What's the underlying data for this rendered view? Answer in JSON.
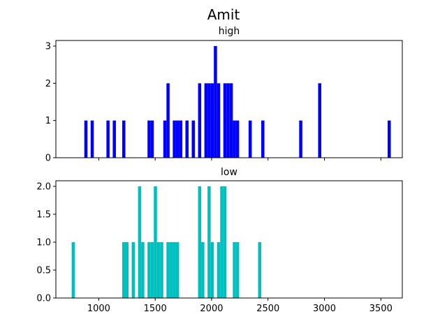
{
  "chart_data": [
    {
      "type": "bar",
      "title": "Amit",
      "subtitle": "high",
      "color": "#0000ff",
      "xlim": [
        620,
        3690
      ],
      "ylim": [
        0,
        3.15
      ],
      "xticks": [
        1000,
        1500,
        2000,
        2500,
        3000,
        3500
      ],
      "xtick_labels_visible": false,
      "yticks": [
        0,
        1,
        2,
        3
      ],
      "ytick_labels": [
        "0",
        "1",
        "2",
        "3"
      ],
      "bins": {
        "start": 760,
        "width": 28,
        "counts": [
          0,
          0,
          0,
          0,
          1,
          0,
          1,
          0,
          0,
          0,
          0,
          1,
          0,
          1,
          0,
          0,
          1,
          0,
          0,
          0,
          0,
          0,
          0,
          0,
          1,
          1,
          0,
          0,
          0,
          1,
          2,
          0,
          1,
          1,
          1,
          0,
          1,
          0,
          1,
          0,
          2,
          0,
          2,
          2,
          2,
          3,
          2,
          0,
          2,
          2,
          2,
          1,
          1,
          0,
          0,
          0,
          1,
          0,
          0,
          0,
          1,
          0,
          0,
          0,
          0,
          0,
          0,
          0,
          0,
          0,
          0,
          0,
          1,
          0,
          0,
          0,
          0,
          0,
          2,
          0,
          0,
          0,
          0,
          0,
          0,
          0,
          0,
          0,
          0,
          0,
          0,
          0,
          0,
          0,
          0,
          0,
          0,
          0,
          0,
          0,
          1
        ]
      }
    },
    {
      "type": "bar",
      "subtitle": "low",
      "color": "#00bfbf",
      "xlim": [
        620,
        3690
      ],
      "ylim": [
        0,
        2.1
      ],
      "xticks": [
        1000,
        1500,
        2000,
        2500,
        3000,
        3500
      ],
      "xtick_labels": [
        "1000",
        "1500",
        "2000",
        "2500",
        "3000",
        "3500"
      ],
      "yticks": [
        0,
        0.5,
        1.0,
        1.5,
        2.0
      ],
      "ytick_labels": [
        "0.0",
        "0.5",
        "1.0",
        "1.5",
        "2.0"
      ],
      "bins": {
        "start": 760,
        "width": 28,
        "counts": [
          1,
          0,
          0,
          0,
          0,
          0,
          0,
          0,
          0,
          0,
          0,
          0,
          0,
          0,
          0,
          0,
          1,
          1,
          0,
          1,
          0,
          2,
          1,
          0,
          1,
          1,
          2,
          1,
          1,
          0,
          1,
          1,
          1,
          1,
          0,
          0,
          0,
          0,
          0,
          0,
          2,
          1,
          0,
          2,
          1,
          0,
          1,
          2,
          2,
          0,
          0,
          1,
          1,
          0,
          0,
          0,
          0,
          0,
          0,
          1
        ]
      }
    }
  ]
}
